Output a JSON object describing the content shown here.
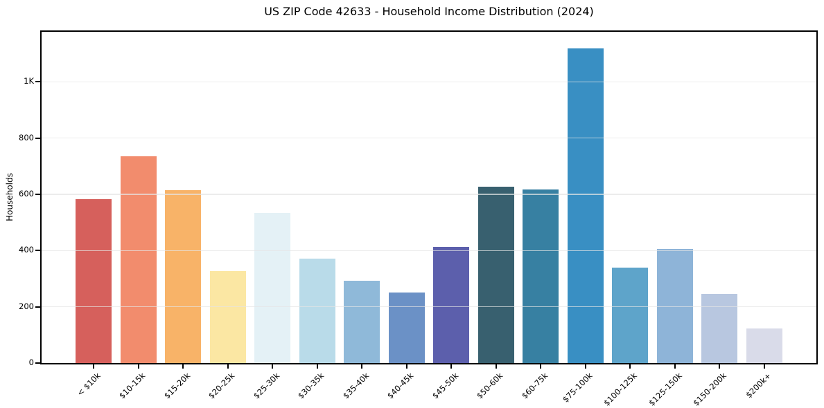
{
  "chart_data": {
    "type": "bar",
    "title": "US ZIP Code 42633 - Household Income Distribution (2024)",
    "xlabel": "",
    "ylabel": "Households",
    "categories": [
      "< $10k",
      "$10-15k",
      "$15-20k",
      "$20-25k",
      "$25-30k",
      "$30-35k",
      "$35-40k",
      "$40-45k",
      "$45-50k",
      "$50-60k",
      "$60-75k",
      "$75-100k",
      "$100-125k",
      "$125-150k",
      "$150-200k",
      "$200k+"
    ],
    "values": [
      582,
      736,
      615,
      326,
      533,
      372,
      293,
      251,
      412,
      628,
      617,
      1118,
      339,
      405,
      246,
      123
    ],
    "bar_colors": [
      "#d6605c",
      "#f28c6d",
      "#f8b368",
      "#fbe7a3",
      "#e4f1f6",
      "#b9dbe9",
      "#8fb9d9",
      "#6b91c6",
      "#5c5fac",
      "#38606f",
      "#3780a2",
      "#398fc3",
      "#5ea4ca",
      "#8eb4d8",
      "#b8c7e0",
      "#d9dbe9"
    ],
    "ylim": [
      0,
      1178
    ],
    "yticks": [
      {
        "value": 0,
        "label": "0"
      },
      {
        "value": 200,
        "label": "200"
      },
      {
        "value": 400,
        "label": "400"
      },
      {
        "value": 600,
        "label": "600"
      },
      {
        "value": 800,
        "label": "800"
      },
      {
        "value": 1000,
        "label": "1K"
      }
    ],
    "grid": "horizontal",
    "frame_color": "#000000",
    "grid_color": "#ececec",
    "background_color": "#ffffff"
  }
}
